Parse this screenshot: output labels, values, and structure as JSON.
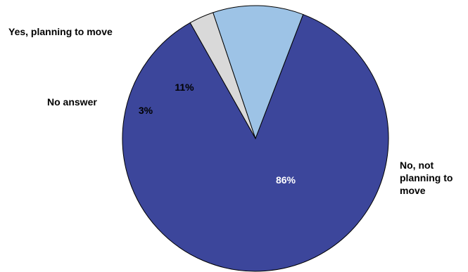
{
  "chart_data": {
    "type": "pie",
    "title": "",
    "slices": [
      {
        "label": "No, not planning to move",
        "label_lines": [
          "No, not",
          "planning to",
          "move"
        ],
        "value": 86,
        "value_label": "86%",
        "color": "#3c469b",
        "text_color": "#ffffff"
      },
      {
        "label": "No answer",
        "label_lines": [
          "No answer"
        ],
        "value": 3,
        "value_label": "3%",
        "color": "#d9d9d9",
        "text_color": "#000000"
      },
      {
        "label": "Yes, planning to move",
        "label_lines": [
          "Yes, planning to move"
        ],
        "value": 11,
        "value_label": "11%",
        "color": "#9dc3e6",
        "text_color": "#000000"
      }
    ],
    "start_angle_deg": 21,
    "direction": "clockwise",
    "legend": "none"
  }
}
